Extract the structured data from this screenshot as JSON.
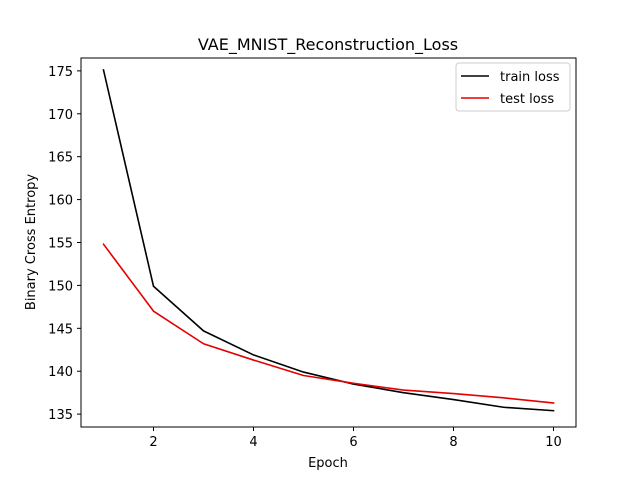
{
  "chart_data": {
    "type": "line",
    "title": "VAE_MNIST_Reconstruction_Loss",
    "xlabel": "Epoch",
    "ylabel": "Binary Cross Entropy",
    "x": [
      1,
      2,
      3,
      4,
      5,
      6,
      7,
      8,
      9,
      10
    ],
    "xlim": [
      0.55,
      10.45
    ],
    "ylim": [
      133.5,
      176.5
    ],
    "xticks": [
      2,
      4,
      6,
      8,
      10
    ],
    "yticks": [
      135,
      140,
      145,
      150,
      155,
      160,
      165,
      170,
      175
    ],
    "grid": false,
    "legend_position": "top-right",
    "series": [
      {
        "name": "train loss",
        "color": "#000000",
        "values": [
          175.1,
          149.9,
          144.7,
          141.9,
          139.9,
          138.5,
          137.5,
          136.7,
          135.8,
          135.4
        ]
      },
      {
        "name": "test loss",
        "color": "#e50000",
        "values": [
          154.8,
          147.0,
          143.2,
          141.3,
          139.5,
          138.6,
          137.8,
          137.4,
          136.9,
          136.3
        ]
      }
    ]
  }
}
